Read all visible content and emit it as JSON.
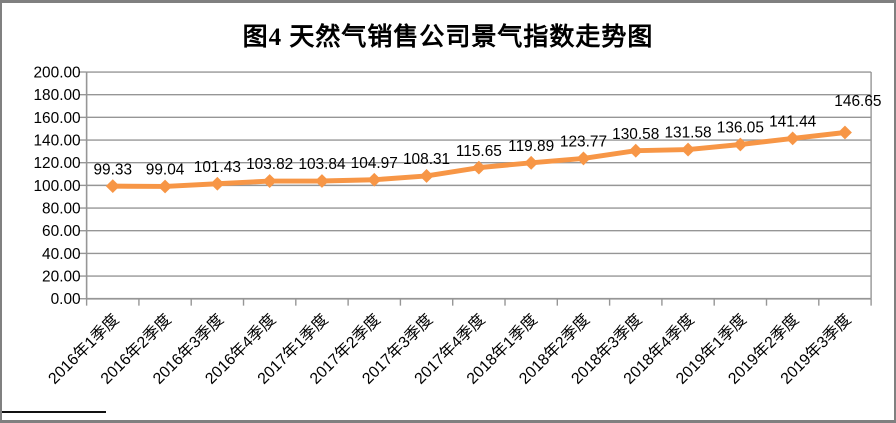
{
  "chart_data": {
    "type": "line",
    "title": "图4 天然气销售公司景气指数走势图",
    "categories": [
      "2016年1季度",
      "2016年2季度",
      "2016年3季度",
      "2016年4季度",
      "2017年1季度",
      "2017年2季度",
      "2017年3季度",
      "2017年4季度",
      "2018年1季度",
      "2018年2季度",
      "2018年3季度",
      "2018年4季度",
      "2019年1季度",
      "2019年2季度",
      "2019年3季度"
    ],
    "values": [
      99.33,
      99.04,
      101.43,
      103.82,
      103.84,
      104.97,
      108.31,
      115.65,
      119.89,
      123.77,
      130.58,
      131.58,
      136.05,
      141.44,
      146.65
    ],
    "data_labels": [
      "99.33",
      "99.04",
      "101.43",
      "103.82",
      "103.84",
      "104.97",
      "108.31",
      "115.65",
      "119.89",
      "123.77",
      "130.58",
      "131.58",
      "136.05",
      "141.44",
      "146.65"
    ],
    "y_ticks": [
      "0.00",
      "20.00",
      "40.00",
      "60.00",
      "80.00",
      "100.00",
      "120.00",
      "140.00",
      "160.00",
      "180.00",
      "200.00"
    ],
    "ylim": [
      0,
      200
    ],
    "y_step": 20,
    "xlabel": "",
    "ylabel": "",
    "grid": true,
    "legend": "none",
    "marker": "diamond",
    "colors": {
      "line": "#F79646",
      "marker": "#F79646",
      "gridline": "#969696",
      "axis": "#969696",
      "label_text": "#000000",
      "frame_border": "#808080"
    }
  }
}
